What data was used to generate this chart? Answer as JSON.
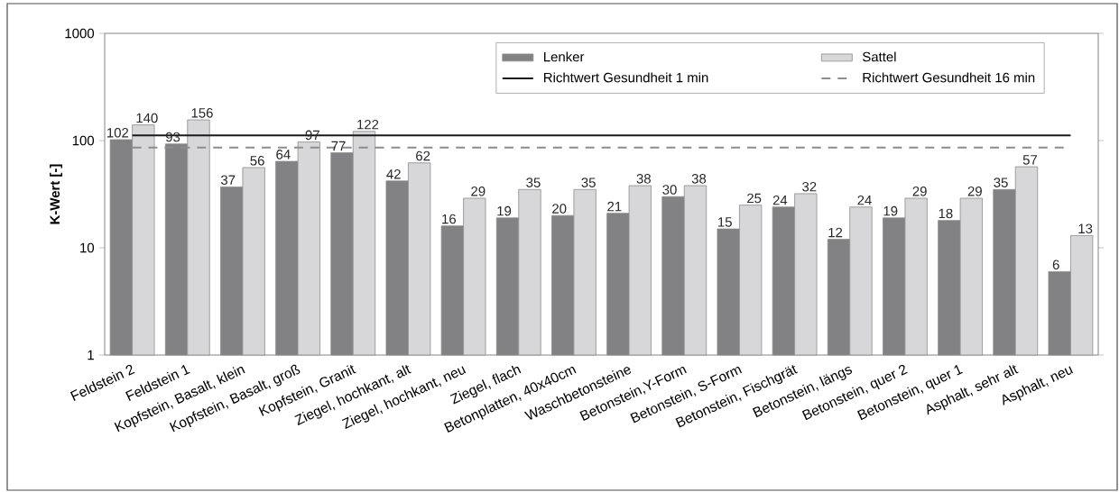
{
  "chart_data": {
    "type": "bar",
    "ylabel": "K-Wert [-]",
    "categories": [
      "Feldstein 2",
      "Feldstein 1",
      "Kopfstein, Basalt, klein",
      "Kopfstein, Basalt, groß",
      "Kopfstein, Granit",
      "Ziegel, hochkant, alt",
      "Ziegel, hochkant, neu",
      "Ziegel, flach",
      "Betonplatten, 40x40cm",
      "Waschbetonsteine",
      "Betonstein,Y-Form",
      "Betonstein, S-Form",
      "Betonstein, Fischgrät",
      "Betonstein, längs",
      "Betonstein, quer 2",
      "Betonstein, quer 1",
      "Asphalt, sehr alt",
      "Asphalt, neu"
    ],
    "series": [
      {
        "name": "Lenker",
        "color": "#828284",
        "values": [
          102,
          93,
          37,
          64,
          77,
          42,
          16,
          19,
          20,
          21,
          30,
          15,
          24,
          12,
          19,
          18,
          35,
          6
        ]
      },
      {
        "name": "Sattel",
        "color": "#d7d7d9",
        "values": [
          140,
          156,
          56,
          97,
          122,
          62,
          29,
          35,
          35,
          38,
          38,
          25,
          32,
          24,
          29,
          29,
          57,
          13
        ]
      }
    ],
    "ref_lines": [
      {
        "axis": "y",
        "value": 112,
        "label": "Richtwert Gesundheit 1 min",
        "color": "#1a1a1a",
        "line_style": "solid"
      },
      {
        "axis": "y",
        "value": 86,
        "label": "Richtwert Gesundheit 16 min",
        "color": "#8c8c8c",
        "line_style": "dashed"
      }
    ],
    "log": "y",
    "ylim": [
      1,
      1000
    ],
    "yticks": [
      1,
      10,
      100,
      1000
    ],
    "data_labels": true,
    "legend": "top right"
  }
}
